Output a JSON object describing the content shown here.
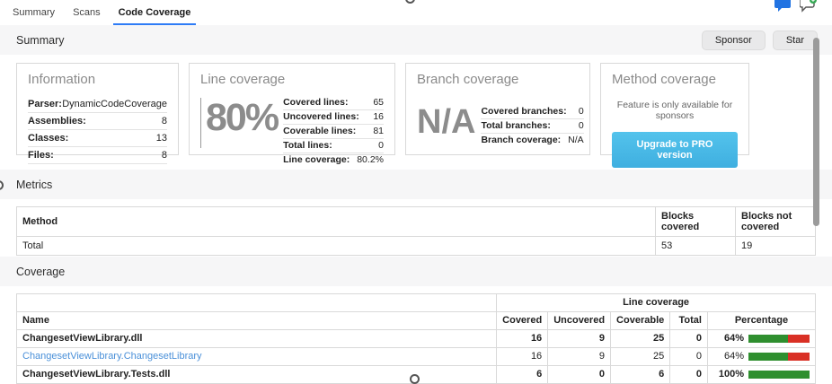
{
  "tabs": [
    {
      "label": "Summary",
      "active": false
    },
    {
      "label": "Scans",
      "active": false
    },
    {
      "label": "Code Coverage",
      "active": true
    }
  ],
  "header_icons": [
    {
      "name": "chat-bubble-filled-icon",
      "color": "#2173e2"
    },
    {
      "name": "chat-bubble-add-icon",
      "badge_color": "#34a853"
    }
  ],
  "sections": {
    "summary": "Summary",
    "metrics": "Metrics",
    "coverage": "Coverage"
  },
  "buttons": {
    "sponsor": "Sponsor",
    "star": "Star"
  },
  "cards": {
    "information": {
      "title": "Information",
      "rows": [
        {
          "label": "Parser:",
          "value": "DynamicCodeCoverage"
        },
        {
          "label": "Assemblies:",
          "value": "8"
        },
        {
          "label": "Classes:",
          "value": "13"
        },
        {
          "label": "Files:",
          "value": "8"
        }
      ]
    },
    "line_coverage": {
      "title": "Line coverage",
      "big_value": "80%",
      "rows": [
        {
          "label": "Covered lines:",
          "value": "65"
        },
        {
          "label": "Uncovered lines:",
          "value": "16"
        },
        {
          "label": "Coverable lines:",
          "value": "81"
        },
        {
          "label": "Total lines:",
          "value": "0"
        },
        {
          "label": "Line coverage:",
          "value": "80.2%"
        }
      ]
    },
    "branch_coverage": {
      "title": "Branch coverage",
      "big_value": "N/A",
      "rows": [
        {
          "label": "Covered branches:",
          "value": "0"
        },
        {
          "label": "Total branches:",
          "value": "0"
        },
        {
          "label": "Branch coverage:",
          "value": "N/A"
        }
      ]
    },
    "method_coverage": {
      "title": "Method coverage",
      "note": "Feature is only available for sponsors",
      "button_label": "Upgrade to PRO version",
      "button_color": "#45b8e4"
    }
  },
  "metrics_table": {
    "headers": [
      "Method",
      "Blocks covered",
      "Blocks not covered"
    ],
    "rows": [
      {
        "method": "Total",
        "blocks_covered": "53",
        "blocks_not_covered": "19"
      }
    ]
  },
  "coverage_table": {
    "group_header": "Line coverage",
    "headers": [
      "Name",
      "Covered",
      "Uncovered",
      "Coverable",
      "Total",
      "Percentage"
    ],
    "rows": [
      {
        "name": "ChangesetViewLibrary.dll",
        "kind": "assembly",
        "covered": "16",
        "uncovered": "9",
        "coverable": "25",
        "total": "0",
        "percentage": "64%",
        "pct": 64
      },
      {
        "name": "ChangesetViewLibrary.ChangesetLibrary",
        "kind": "class",
        "covered": "16",
        "uncovered": "9",
        "coverable": "25",
        "total": "0",
        "percentage": "64%",
        "pct": 64
      },
      {
        "name": "ChangesetViewLibrary.Tests.dll",
        "kind": "assembly",
        "covered": "6",
        "uncovered": "0",
        "coverable": "6",
        "total": "0",
        "percentage": "100%",
        "pct": 100
      }
    ]
  },
  "colors": {
    "tab_underline": "#2e7cf6",
    "link_blue": "#4a90d9",
    "bar_green": "#2f8f2f",
    "bar_red": "#d93025",
    "big_number_gray": "#8c8c8c"
  }
}
